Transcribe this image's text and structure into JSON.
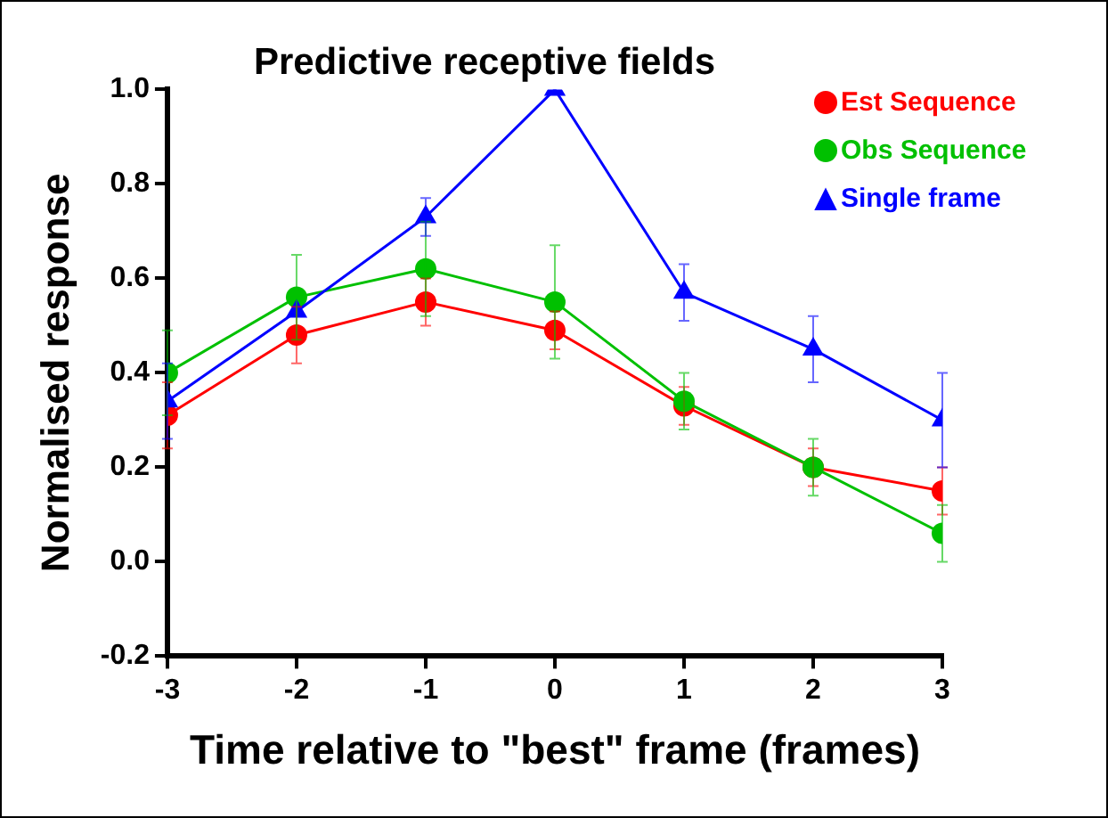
{
  "chart_data": {
    "type": "line",
    "title": "Predictive receptive fields",
    "xlabel": "Time relative to \"best\" frame (frames)",
    "ylabel": "Normalised response",
    "x": [
      -3,
      -2,
      -1,
      0,
      1,
      2,
      3
    ],
    "xlim": [
      -3,
      3
    ],
    "xticks": [
      -3,
      -2,
      -1,
      0,
      1,
      2,
      3
    ],
    "ylim": [
      -0.2,
      1.0
    ],
    "yticks": [
      {
        "value": -0.2,
        "label": "-0.2"
      },
      {
        "value": 0,
        "label": "0.0"
      },
      {
        "value": 0.2,
        "label": "0.2"
      },
      {
        "value": 0.4,
        "label": "0.4"
      },
      {
        "value": 0.6,
        "label": "0.6"
      },
      {
        "value": 0.8,
        "label": "0.8"
      },
      {
        "value": 1.0,
        "label": "1.0"
      }
    ],
    "grid": false,
    "legend": "top right",
    "line_style": "solid",
    "series": [
      {
        "name": "Est Sequence",
        "color": "#ff0000",
        "marker": "circle",
        "values": [
          0.31,
          0.48,
          0.55,
          0.49,
          0.33,
          0.2,
          0.15
        ],
        "errors": [
          0.07,
          0.06,
          0.05,
          0.04,
          0.04,
          0.04,
          0.05
        ]
      },
      {
        "name": "Obs Sequence",
        "color": "#00c000",
        "marker": "circle",
        "values": [
          0.4,
          0.56,
          0.62,
          0.55,
          0.34,
          0.2,
          0.06
        ],
        "errors": [
          0.09,
          0.09,
          0.1,
          0.12,
          0.06,
          0.06,
          0.06
        ]
      },
      {
        "name": "Single frame",
        "color": "#0000ff",
        "marker": "triangle",
        "values": [
          0.34,
          0.53,
          0.73,
          1.0,
          0.57,
          0.45,
          0.3
        ],
        "errors": [
          0.08,
          null,
          0.04,
          null,
          0.06,
          0.07,
          0.1
        ]
      }
    ]
  }
}
